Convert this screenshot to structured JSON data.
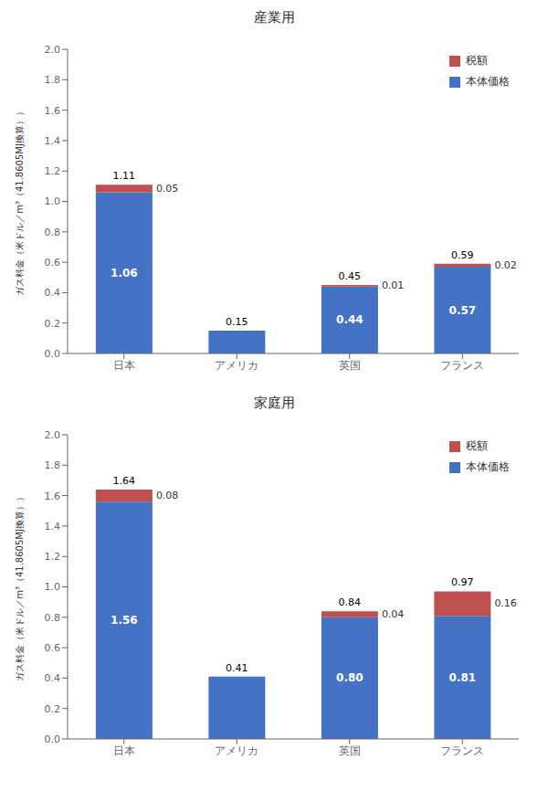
{
  "chart_data": [
    {
      "type": "bar",
      "title": "産業用",
      "categories": [
        "日本",
        "アメリカ",
        "英国",
        "フランス"
      ],
      "series": [
        {
          "name": "本体価格",
          "color": "#4472C4",
          "values": [
            1.06,
            0.15,
            0.44,
            0.57
          ],
          "value_labels": [
            "1.06",
            null,
            "0.44",
            "0.57"
          ]
        },
        {
          "name": "税額",
          "color": "#C0504D",
          "values": [
            0.05,
            0.0,
            0.01,
            0.02
          ],
          "value_labels": [
            "0.05",
            null,
            "0.01",
            "0.02"
          ]
        }
      ],
      "stacked": true,
      "data_labels": true,
      "ylabel": "ガス料金（米ドル／m³（41.8605MJ換算））",
      "ylim": [
        0,
        2.0
      ],
      "yticks": [
        {
          "value": 0,
          "label": "0.0"
        },
        0.2,
        0.4,
        0.6,
        0.8,
        {
          "value": 1,
          "label": "1.0"
        },
        1.2,
        1.4,
        1.6,
        1.8,
        {
          "value": 2,
          "label": "2.0"
        }
      ],
      "legend": "upper right",
      "grid": false,
      "annotations": [
        {
          "x": "日本",
          "y": 1.11,
          "text": "1.11"
        },
        {
          "x": "アメリカ",
          "y": 0.15,
          "text": "0.15"
        },
        {
          "x": "英国",
          "y": 0.45,
          "text": "0.45"
        },
        {
          "x": "フランス",
          "y": 0.59,
          "text": "0.59"
        }
      ]
    },
    {
      "type": "bar",
      "title": "家庭用",
      "categories": [
        "日本",
        "アメリカ",
        "英国",
        "フランス"
      ],
      "series": [
        {
          "name": "本体価格",
          "color": "#4472C4",
          "values": [
            1.56,
            0.41,
            0.8,
            0.81
          ],
          "value_labels": [
            "1.56",
            null,
            "0.80",
            "0.81"
          ]
        },
        {
          "name": "税額",
          "color": "#C0504D",
          "values": [
            0.08,
            0.0,
            0.04,
            0.16
          ],
          "value_labels": [
            "0.08",
            null,
            "0.04",
            "0.16"
          ]
        }
      ],
      "stacked": true,
      "data_labels": true,
      "ylabel": "ガス料金（米ドル／m³（41.8605MJ換算））",
      "ylim": [
        0,
        2.0
      ],
      "yticks": [
        {
          "value": 0,
          "label": "0.0"
        },
        0.2,
        0.4,
        0.6,
        0.8,
        {
          "value": 1,
          "label": "1.0"
        },
        1.2,
        1.4,
        1.6,
        1.8,
        {
          "value": 2,
          "label": "2.0"
        }
      ],
      "legend": "upper right",
      "grid": false,
      "annotations": [
        {
          "x": "日本",
          "y": 1.64,
          "text": "1.64"
        },
        {
          "x": "アメリカ",
          "y": 0.41,
          "text": "0.41"
        },
        {
          "x": "英国",
          "y": 0.84,
          "text": "0.84"
        },
        {
          "x": "フランス",
          "y": 0.97,
          "text": "0.97"
        }
      ]
    }
  ]
}
